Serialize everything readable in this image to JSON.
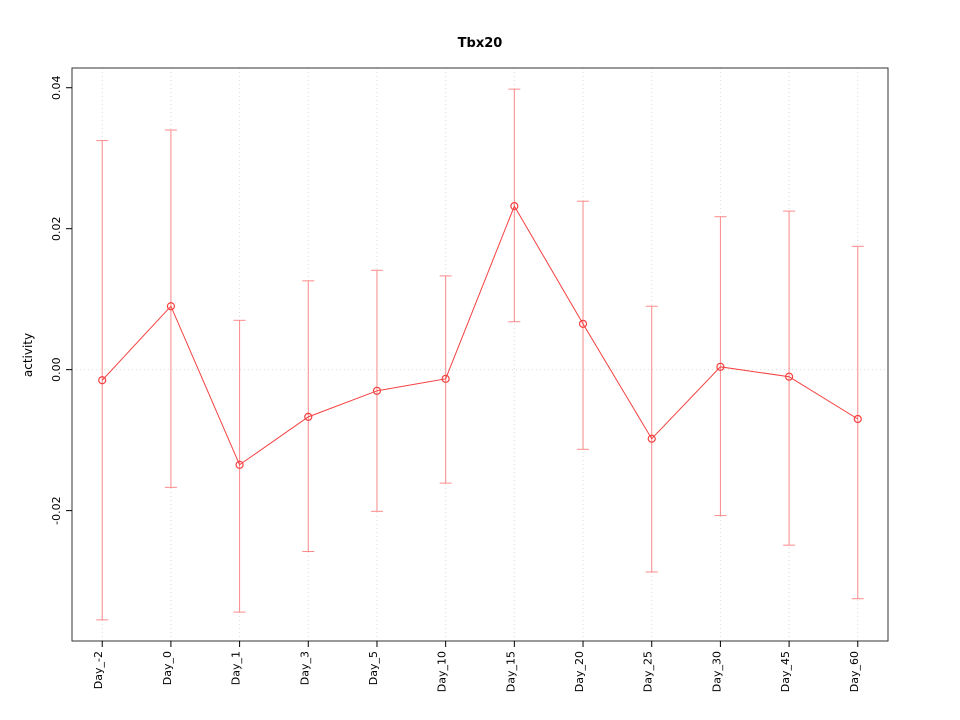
{
  "chart_data": {
    "type": "line",
    "title": "Tbx20",
    "xlabel": "",
    "ylabel": "activity",
    "categories": [
      "Day_-2",
      "Day_0",
      "Day_1",
      "Day_3",
      "Day_5",
      "Day_10",
      "Day_15",
      "Day_20",
      "Day_25",
      "Day_30",
      "Day_45",
      "Day_60"
    ],
    "values": [
      -0.0015,
      0.009,
      -0.0135,
      -0.0067,
      -0.003,
      -0.0013,
      0.0232,
      0.0065,
      -0.0098,
      0.0004,
      -0.001,
      -0.007
    ],
    "error_upper": [
      0.0325,
      0.034,
      0.007,
      0.0126,
      0.0141,
      0.0133,
      0.0398,
      0.0239,
      0.009,
      0.0217,
      0.0225,
      0.0175
    ],
    "error_lower": [
      -0.0355,
      -0.0167,
      -0.0344,
      -0.0258,
      -0.0201,
      -0.0161,
      0.0068,
      -0.0113,
      -0.0287,
      -0.0207,
      -0.0249,
      -0.0325
    ],
    "ylim": [
      -0.0385,
      0.0428
    ],
    "yticks": [
      -0.02,
      0.0,
      0.02,
      0.04
    ],
    "ytick_labels": [
      "-0.02",
      "0.00",
      "0.02",
      "0.04"
    ],
    "grid": "dotted vertical at each category, dotted horizontal at 0",
    "legend_position": "none",
    "colors": {
      "line": "#f44040",
      "point": "#f44040",
      "error_bar": "#fc8a8a",
      "grid": "#d9d9d9",
      "border": "#333333"
    }
  }
}
